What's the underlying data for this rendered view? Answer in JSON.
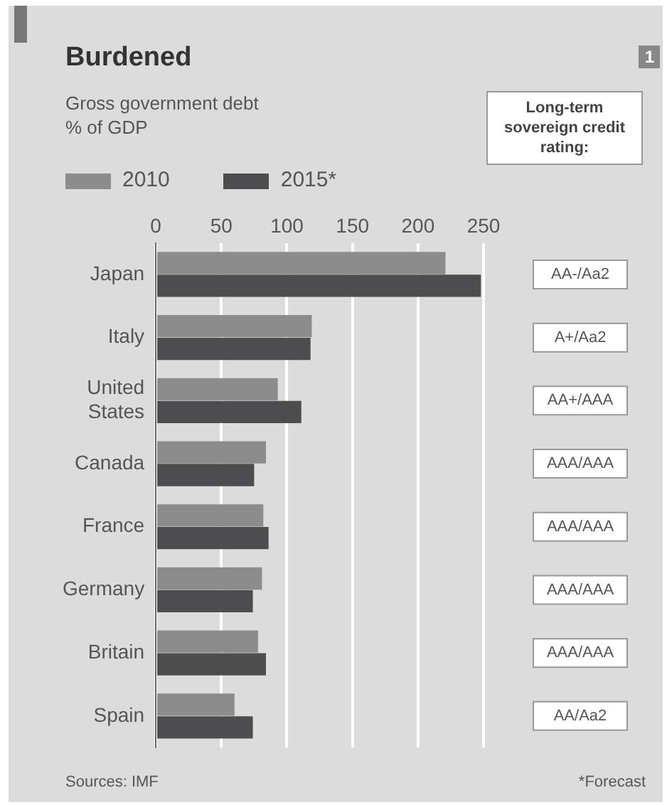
{
  "chart_data": {
    "type": "bar",
    "orientation": "horizontal",
    "title": "Burdened",
    "subtitle": "Gross government debt\n% of GDP",
    "categories": [
      "Japan",
      "Italy",
      "United States",
      "Canada",
      "France",
      "Germany",
      "Britain",
      "Spain"
    ],
    "series": [
      {
        "name": "2010",
        "color": "#8c8c8c",
        "values": [
          221,
          119,
          93,
          84,
          82,
          81,
          78,
          60
        ]
      },
      {
        "name": "2015*",
        "color": "#4d4d4f",
        "values": [
          248,
          118,
          111,
          75,
          86,
          74,
          84,
          74
        ]
      }
    ],
    "xlim": [
      0,
      250
    ],
    "xticks": [
      0,
      50,
      100,
      150,
      200,
      250
    ],
    "grid": "x",
    "legend": "top left",
    "annotations": [
      "Long-term sovereign credit rating:",
      "Sources: IMF",
      "*Forecast",
      "1",
      "AA-/Aa2",
      "A+/Aa2",
      "AA+/AAA",
      "AAA/AAA",
      "AAA/AAA",
      "AAA/AAA",
      "AAA/AAA",
      "AA/Aa2"
    ]
  }
}
